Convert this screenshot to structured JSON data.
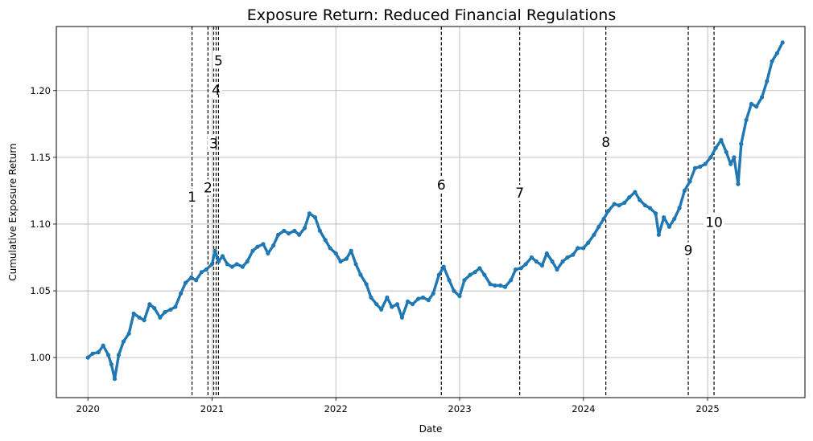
{
  "chart_data": {
    "type": "line",
    "title": "Exposure Return: Reduced Financial Regulations",
    "xlabel": "Date",
    "ylabel": "Cumulative Exposure Return",
    "x_ticks": [
      "2020",
      "2021",
      "2022",
      "2023",
      "2024",
      "2025"
    ],
    "y_ticks": [
      "1.00",
      "1.05",
      "1.10",
      "1.15",
      "1.20"
    ],
    "ylim": [
      0.97,
      1.248
    ],
    "xlim": [
      "2019-09-30",
      "2025-10-15"
    ],
    "grid": true,
    "color": "#1f77b4",
    "series": [
      {
        "name": "",
        "points": [
          [
            "2020-01-01",
            1.0
          ],
          [
            "2020-01-15",
            1.003
          ],
          [
            "2020-02-01",
            1.004
          ],
          [
            "2020-02-15",
            1.009
          ],
          [
            "2020-03-01",
            1.002
          ],
          [
            "2020-03-10",
            0.995
          ],
          [
            "2020-03-20",
            0.984
          ],
          [
            "2020-04-01",
            1.002
          ],
          [
            "2020-04-15",
            1.012
          ],
          [
            "2020-05-01",
            1.018
          ],
          [
            "2020-05-15",
            1.033
          ],
          [
            "2020-06-01",
            1.03
          ],
          [
            "2020-06-15",
            1.028
          ],
          [
            "2020-07-01",
            1.04
          ],
          [
            "2020-07-15",
            1.037
          ],
          [
            "2020-08-01",
            1.03
          ],
          [
            "2020-08-15",
            1.034
          ],
          [
            "2020-09-01",
            1.036
          ],
          [
            "2020-09-15",
            1.038
          ],
          [
            "2020-10-01",
            1.048
          ],
          [
            "2020-10-15",
            1.056
          ],
          [
            "2020-11-01",
            1.06
          ],
          [
            "2020-11-15",
            1.058
          ],
          [
            "2020-12-01",
            1.064
          ],
          [
            "2020-12-15",
            1.066
          ],
          [
            "2021-01-01",
            1.07
          ],
          [
            "2021-01-10",
            1.08
          ],
          [
            "2021-01-20",
            1.072
          ],
          [
            "2021-02-01",
            1.076
          ],
          [
            "2021-02-15",
            1.07
          ],
          [
            "2021-03-01",
            1.068
          ],
          [
            "2021-03-15",
            1.07
          ],
          [
            "2021-04-01",
            1.068
          ],
          [
            "2021-04-15",
            1.072
          ],
          [
            "2021-05-01",
            1.08
          ],
          [
            "2021-05-15",
            1.083
          ],
          [
            "2021-06-01",
            1.085
          ],
          [
            "2021-06-15",
            1.078
          ],
          [
            "2021-07-01",
            1.084
          ],
          [
            "2021-07-15",
            1.092
          ],
          [
            "2021-08-01",
            1.095
          ],
          [
            "2021-08-15",
            1.093
          ],
          [
            "2021-09-01",
            1.095
          ],
          [
            "2021-09-15",
            1.092
          ],
          [
            "2021-10-01",
            1.097
          ],
          [
            "2021-10-15",
            1.108
          ],
          [
            "2021-11-01",
            1.105
          ],
          [
            "2021-11-15",
            1.095
          ],
          [
            "2021-12-01",
            1.088
          ],
          [
            "2021-12-15",
            1.082
          ],
          [
            "2022-01-01",
            1.078
          ],
          [
            "2022-01-15",
            1.072
          ],
          [
            "2022-02-01",
            1.074
          ],
          [
            "2022-02-15",
            1.08
          ],
          [
            "2022-03-01",
            1.07
          ],
          [
            "2022-03-15",
            1.062
          ],
          [
            "2022-04-01",
            1.055
          ],
          [
            "2022-04-15",
            1.045
          ],
          [
            "2022-05-01",
            1.04
          ],
          [
            "2022-05-15",
            1.036
          ],
          [
            "2022-06-01",
            1.045
          ],
          [
            "2022-06-15",
            1.038
          ],
          [
            "2022-07-01",
            1.04
          ],
          [
            "2022-07-15",
            1.03
          ],
          [
            "2022-08-01",
            1.042
          ],
          [
            "2022-08-15",
            1.04
          ],
          [
            "2022-09-01",
            1.044
          ],
          [
            "2022-09-15",
            1.045
          ],
          [
            "2022-10-01",
            1.043
          ],
          [
            "2022-10-15",
            1.048
          ],
          [
            "2022-11-01",
            1.062
          ],
          [
            "2022-11-15",
            1.068
          ],
          [
            "2022-12-01",
            1.058
          ],
          [
            "2022-12-15",
            1.05
          ],
          [
            "2023-01-01",
            1.046
          ],
          [
            "2023-01-15",
            1.058
          ],
          [
            "2023-02-01",
            1.062
          ],
          [
            "2023-02-15",
            1.064
          ],
          [
            "2023-03-01",
            1.067
          ],
          [
            "2023-03-15",
            1.062
          ],
          [
            "2023-04-01",
            1.055
          ],
          [
            "2023-04-15",
            1.054
          ],
          [
            "2023-05-01",
            1.054
          ],
          [
            "2023-05-15",
            1.053
          ],
          [
            "2023-06-01",
            1.058
          ],
          [
            "2023-06-15",
            1.066
          ],
          [
            "2023-07-01",
            1.067
          ],
          [
            "2023-07-15",
            1.07
          ],
          [
            "2023-08-01",
            1.075
          ],
          [
            "2023-08-15",
            1.072
          ],
          [
            "2023-09-01",
            1.069
          ],
          [
            "2023-09-15",
            1.078
          ],
          [
            "2023-10-01",
            1.072
          ],
          [
            "2023-10-15",
            1.066
          ],
          [
            "2023-11-01",
            1.072
          ],
          [
            "2023-11-15",
            1.075
          ],
          [
            "2023-12-01",
            1.077
          ],
          [
            "2023-12-15",
            1.082
          ],
          [
            "2024-01-01",
            1.082
          ],
          [
            "2024-01-15",
            1.086
          ],
          [
            "2024-02-01",
            1.092
          ],
          [
            "2024-02-15",
            1.098
          ],
          [
            "2024-03-01",
            1.104
          ],
          [
            "2024-03-15",
            1.11
          ],
          [
            "2024-04-01",
            1.115
          ],
          [
            "2024-04-15",
            1.114
          ],
          [
            "2024-05-01",
            1.116
          ],
          [
            "2024-05-15",
            1.12
          ],
          [
            "2024-06-01",
            1.124
          ],
          [
            "2024-06-15",
            1.118
          ],
          [
            "2024-07-01",
            1.114
          ],
          [
            "2024-07-15",
            1.112
          ],
          [
            "2024-08-01",
            1.108
          ],
          [
            "2024-08-10",
            1.092
          ],
          [
            "2024-08-25",
            1.105
          ],
          [
            "2024-09-10",
            1.098
          ],
          [
            "2024-09-25",
            1.104
          ],
          [
            "2024-10-10",
            1.112
          ],
          [
            "2024-10-25",
            1.125
          ],
          [
            "2024-11-10",
            1.132
          ],
          [
            "2024-11-25",
            1.142
          ],
          [
            "2024-12-10",
            1.143
          ],
          [
            "2024-12-25",
            1.145
          ],
          [
            "2025-01-10",
            1.15
          ],
          [
            "2025-01-25",
            1.157
          ],
          [
            "2025-02-10",
            1.163
          ],
          [
            "2025-02-25",
            1.154
          ],
          [
            "2025-03-10",
            1.145
          ],
          [
            "2025-03-20",
            1.15
          ],
          [
            "2025-04-01",
            1.13
          ],
          [
            "2025-04-10",
            1.16
          ],
          [
            "2025-04-25",
            1.178
          ],
          [
            "2025-05-10",
            1.19
          ],
          [
            "2025-05-25",
            1.188
          ],
          [
            "2025-06-10",
            1.195
          ],
          [
            "2025-06-25",
            1.207
          ],
          [
            "2025-07-10",
            1.222
          ],
          [
            "2025-07-25",
            1.228
          ],
          [
            "2025-08-10",
            1.236
          ]
        ]
      }
    ],
    "events": [
      {
        "label": "1",
        "date": "2020-11-03",
        "label_y": 1.118
      },
      {
        "label": "2",
        "date": "2020-12-20",
        "label_y": 1.125
      },
      {
        "label": "3",
        "date": "2021-01-06",
        "label_y": 1.158
      },
      {
        "label": "4",
        "date": "2021-01-13",
        "label_y": 1.198
      },
      {
        "label": "5",
        "date": "2021-01-20",
        "label_y": 1.22
      },
      {
        "label": "6",
        "date": "2022-11-08",
        "label_y": 1.127
      },
      {
        "label": "7",
        "date": "2023-06-27",
        "label_y": 1.121
      },
      {
        "label": "8",
        "date": "2024-03-07",
        "label_y": 1.159
      },
      {
        "label": "9",
        "date": "2024-11-05",
        "label_y": 1.078
      },
      {
        "label": "10",
        "date": "2025-01-20",
        "label_y": 1.099
      }
    ]
  }
}
